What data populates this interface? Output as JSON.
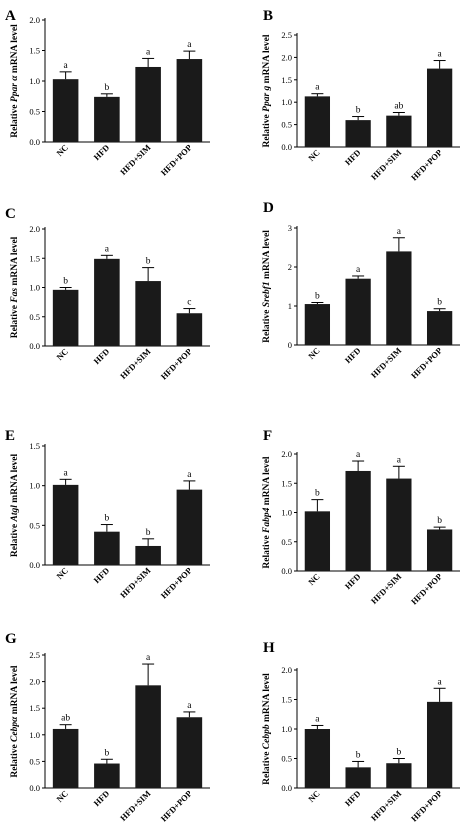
{
  "chart_data": [
    {
      "panel": "A",
      "type": "bar",
      "ylabel_pre": "Relative ",
      "ylabel_gene": "Ppar α",
      "ylabel_post": " mRNA level",
      "ylim": [
        0,
        2.0
      ],
      "yticks": [
        "0.0",
        "0.5",
        "1.0",
        "1.5",
        "2.0"
      ],
      "categories": [
        "NC",
        "HFD",
        "HFD+SIM",
        "HFD+POP"
      ],
      "values": [
        1.03,
        0.74,
        1.23,
        1.36
      ],
      "errors": [
        0.12,
        0.05,
        0.14,
        0.13
      ],
      "letters": [
        "a",
        "b",
        "a",
        "a"
      ]
    },
    {
      "panel": "B",
      "type": "bar",
      "ylabel_pre": "Relative ",
      "ylabel_gene": "Ppar g",
      "ylabel_post": " mRNA level",
      "ylim": [
        0,
        2.5
      ],
      "yticks": [
        "0.0",
        "0.5",
        "1.0",
        "1.5",
        "2.0",
        "2.5"
      ],
      "categories": [
        "NC",
        "HFD",
        "HFD+SIM",
        "HFD+POP"
      ],
      "values": [
        1.13,
        0.6,
        0.7,
        1.75
      ],
      "errors": [
        0.06,
        0.08,
        0.07,
        0.18
      ],
      "letters": [
        "a",
        "b",
        "ab",
        "a"
      ]
    },
    {
      "panel": "C",
      "type": "bar",
      "ylabel_pre": "Relative ",
      "ylabel_gene": "Fas",
      "ylabel_post": " mRNA level",
      "ylim": [
        0,
        2.0
      ],
      "yticks": [
        "0.0",
        "0.5",
        "1.0",
        "1.5",
        "2.0"
      ],
      "categories": [
        "NC",
        "HFD",
        "HFD+SIM",
        "HFD+POP"
      ],
      "values": [
        0.96,
        1.49,
        1.11,
        0.56
      ],
      "errors": [
        0.04,
        0.06,
        0.23,
        0.08
      ],
      "letters": [
        "b",
        "a",
        "b",
        "c"
      ]
    },
    {
      "panel": "D",
      "type": "bar",
      "ylabel_pre": "Relative ",
      "ylabel_gene": "Srebf1",
      "ylabel_post": " mRNA level",
      "ylim": [
        0,
        3
      ],
      "yticks": [
        "0",
        "1",
        "2",
        "3"
      ],
      "categories": [
        "NC",
        "HFD",
        "HFD+SIM",
        "HFD+POP"
      ],
      "values": [
        1.05,
        1.7,
        2.4,
        0.87
      ],
      "errors": [
        0.04,
        0.07,
        0.35,
        0.06
      ],
      "letters": [
        "b",
        "a",
        "a",
        "b"
      ]
    },
    {
      "panel": "E",
      "type": "bar",
      "ylabel_pre": "Relative ",
      "ylabel_gene": "Atgl",
      "ylabel_post": " mRNA level",
      "ylim": [
        0,
        1.5
      ],
      "yticks": [
        "0.0",
        "0.5",
        "1.0",
        "1.5"
      ],
      "categories": [
        "NC",
        "HFD",
        "HFD+SIM",
        "HFD+POP"
      ],
      "values": [
        1.01,
        0.42,
        0.24,
        0.95
      ],
      "errors": [
        0.07,
        0.09,
        0.09,
        0.11
      ],
      "letters": [
        "a",
        "b",
        "b",
        "a"
      ]
    },
    {
      "panel": "F",
      "type": "bar",
      "ylabel_pre": "Relative ",
      "ylabel_gene": "Fabp4",
      "ylabel_post": " mRNA level",
      "ylim": [
        0,
        2.0
      ],
      "yticks": [
        "0.0",
        "0.5",
        "1.0",
        "1.5",
        "2.0"
      ],
      "categories": [
        "NC",
        "HFD",
        "HFD+SIM",
        "HFD+POP"
      ],
      "values": [
        1.02,
        1.71,
        1.58,
        0.71
      ],
      "errors": [
        0.2,
        0.17,
        0.21,
        0.04
      ],
      "letters": [
        "b",
        "a",
        "a",
        "b"
      ]
    },
    {
      "panel": "G",
      "type": "bar",
      "ylabel_pre": "Relative ",
      "ylabel_gene": "Cebpα",
      "ylabel_post": " mRNA level",
      "ylim": [
        0,
        2.5
      ],
      "yticks": [
        "0.0",
        "0.5",
        "1.0",
        "1.5",
        "2.0",
        "2.5"
      ],
      "categories": [
        "NC",
        "HFD",
        "HFD+SIM",
        "HFD+POP"
      ],
      "values": [
        1.11,
        0.46,
        1.93,
        1.33
      ],
      "errors": [
        0.08,
        0.08,
        0.4,
        0.1
      ],
      "letters": [
        "ab",
        "b",
        "a",
        "a"
      ]
    },
    {
      "panel": "H",
      "type": "bar",
      "ylabel_pre": "Relative ",
      "ylabel_gene": "Cebpb",
      "ylabel_post": " mRNA level",
      "ylim": [
        0,
        2.0
      ],
      "yticks": [
        "0.0",
        "0.5",
        "1.0",
        "1.5",
        "2.0"
      ],
      "categories": [
        "NC",
        "HFD",
        "HFD+SIM",
        "HFD+POP"
      ],
      "values": [
        1.0,
        0.35,
        0.42,
        1.46
      ],
      "errors": [
        0.06,
        0.1,
        0.08,
        0.23
      ],
      "letters": [
        "a",
        "b",
        "b",
        "a"
      ]
    }
  ],
  "colors": {
    "bar": "#1a1a1a",
    "axis": "#000000"
  }
}
